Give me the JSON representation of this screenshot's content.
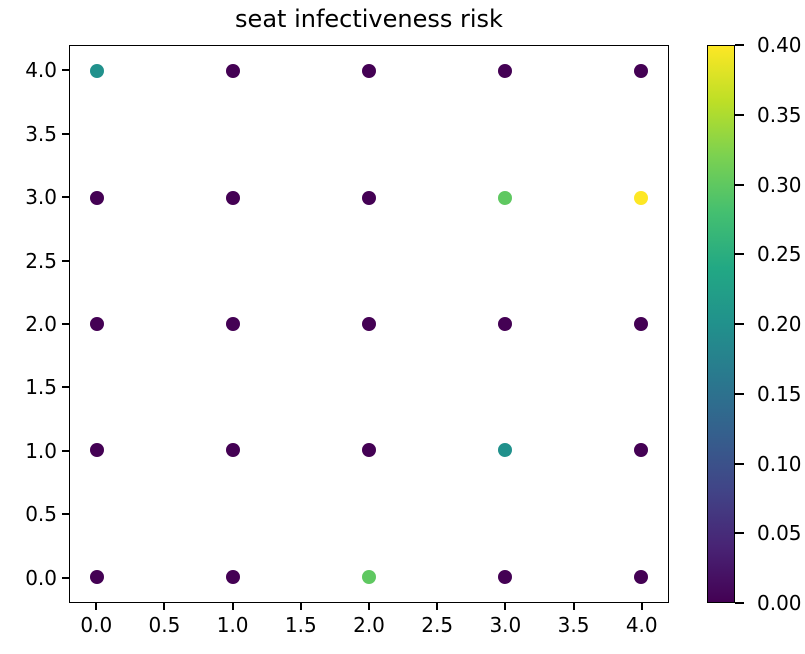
{
  "chart_data": {
    "type": "scatter",
    "title": "seat infectiveness risk",
    "xlabel": "",
    "ylabel": "",
    "grid": false,
    "xlim": [
      -0.2,
      4.2
    ],
    "ylim": [
      -0.2,
      4.2
    ],
    "xticks": [
      0.0,
      0.5,
      1.0,
      1.5,
      2.0,
      2.5,
      3.0,
      3.5,
      4.0
    ],
    "yticks": [
      0.0,
      0.5,
      1.0,
      1.5,
      2.0,
      2.5,
      3.0,
      3.5,
      4.0
    ],
    "xtick_labels": [
      "0.0",
      "0.5",
      "1.0",
      "1.5",
      "2.0",
      "2.5",
      "3.0",
      "3.5",
      "4.0"
    ],
    "ytick_labels": [
      "0.0",
      "0.5",
      "1.0",
      "1.5",
      "2.0",
      "2.5",
      "3.0",
      "3.5",
      "4.0"
    ],
    "points": [
      {
        "x": 0,
        "y": 4,
        "c": 0.2
      },
      {
        "x": 1,
        "y": 4,
        "c": 0.0
      },
      {
        "x": 2,
        "y": 4,
        "c": 0.0
      },
      {
        "x": 3,
        "y": 4,
        "c": 0.0
      },
      {
        "x": 4,
        "y": 4,
        "c": 0.0
      },
      {
        "x": 0,
        "y": 3,
        "c": 0.0
      },
      {
        "x": 1,
        "y": 3,
        "c": 0.0
      },
      {
        "x": 2,
        "y": 3,
        "c": 0.0
      },
      {
        "x": 3,
        "y": 3,
        "c": 0.3
      },
      {
        "x": 4,
        "y": 3,
        "c": 0.4
      },
      {
        "x": 0,
        "y": 2,
        "c": 0.0
      },
      {
        "x": 1,
        "y": 2,
        "c": 0.0
      },
      {
        "x": 2,
        "y": 2,
        "c": 0.0
      },
      {
        "x": 3,
        "y": 2,
        "c": 0.0
      },
      {
        "x": 4,
        "y": 2,
        "c": 0.0
      },
      {
        "x": 0,
        "y": 1,
        "c": 0.0
      },
      {
        "x": 1,
        "y": 1,
        "c": 0.0
      },
      {
        "x": 2,
        "y": 1,
        "c": 0.0
      },
      {
        "x": 3,
        "y": 1,
        "c": 0.2
      },
      {
        "x": 4,
        "y": 1,
        "c": 0.0
      },
      {
        "x": 0,
        "y": 0,
        "c": 0.0
      },
      {
        "x": 1,
        "y": 0,
        "c": 0.0
      },
      {
        "x": 2,
        "y": 0,
        "c": 0.3
      },
      {
        "x": 3,
        "y": 0,
        "c": 0.0
      },
      {
        "x": 4,
        "y": 0,
        "c": 0.0
      }
    ],
    "colorbar": {
      "min": 0.0,
      "max": 0.4,
      "ticks": [
        0.0,
        0.05,
        0.1,
        0.15,
        0.2,
        0.25,
        0.3,
        0.35,
        0.4
      ],
      "tick_labels": [
        "0.00",
        "0.05",
        "0.10",
        "0.15",
        "0.20",
        "0.25",
        "0.30",
        "0.35",
        "0.40"
      ]
    },
    "colormap": {
      "name": "viridis",
      "stops": [
        [
          0.0,
          "#440154"
        ],
        [
          0.1,
          "#482475"
        ],
        [
          0.2,
          "#414487"
        ],
        [
          0.3,
          "#355f8d"
        ],
        [
          0.4,
          "#2a788e"
        ],
        [
          0.5,
          "#21918c"
        ],
        [
          0.6,
          "#22a884"
        ],
        [
          0.7,
          "#44bf70"
        ],
        [
          0.8,
          "#7ad151"
        ],
        [
          0.9,
          "#bddf26"
        ],
        [
          1.0,
          "#fde725"
        ]
      ]
    }
  }
}
